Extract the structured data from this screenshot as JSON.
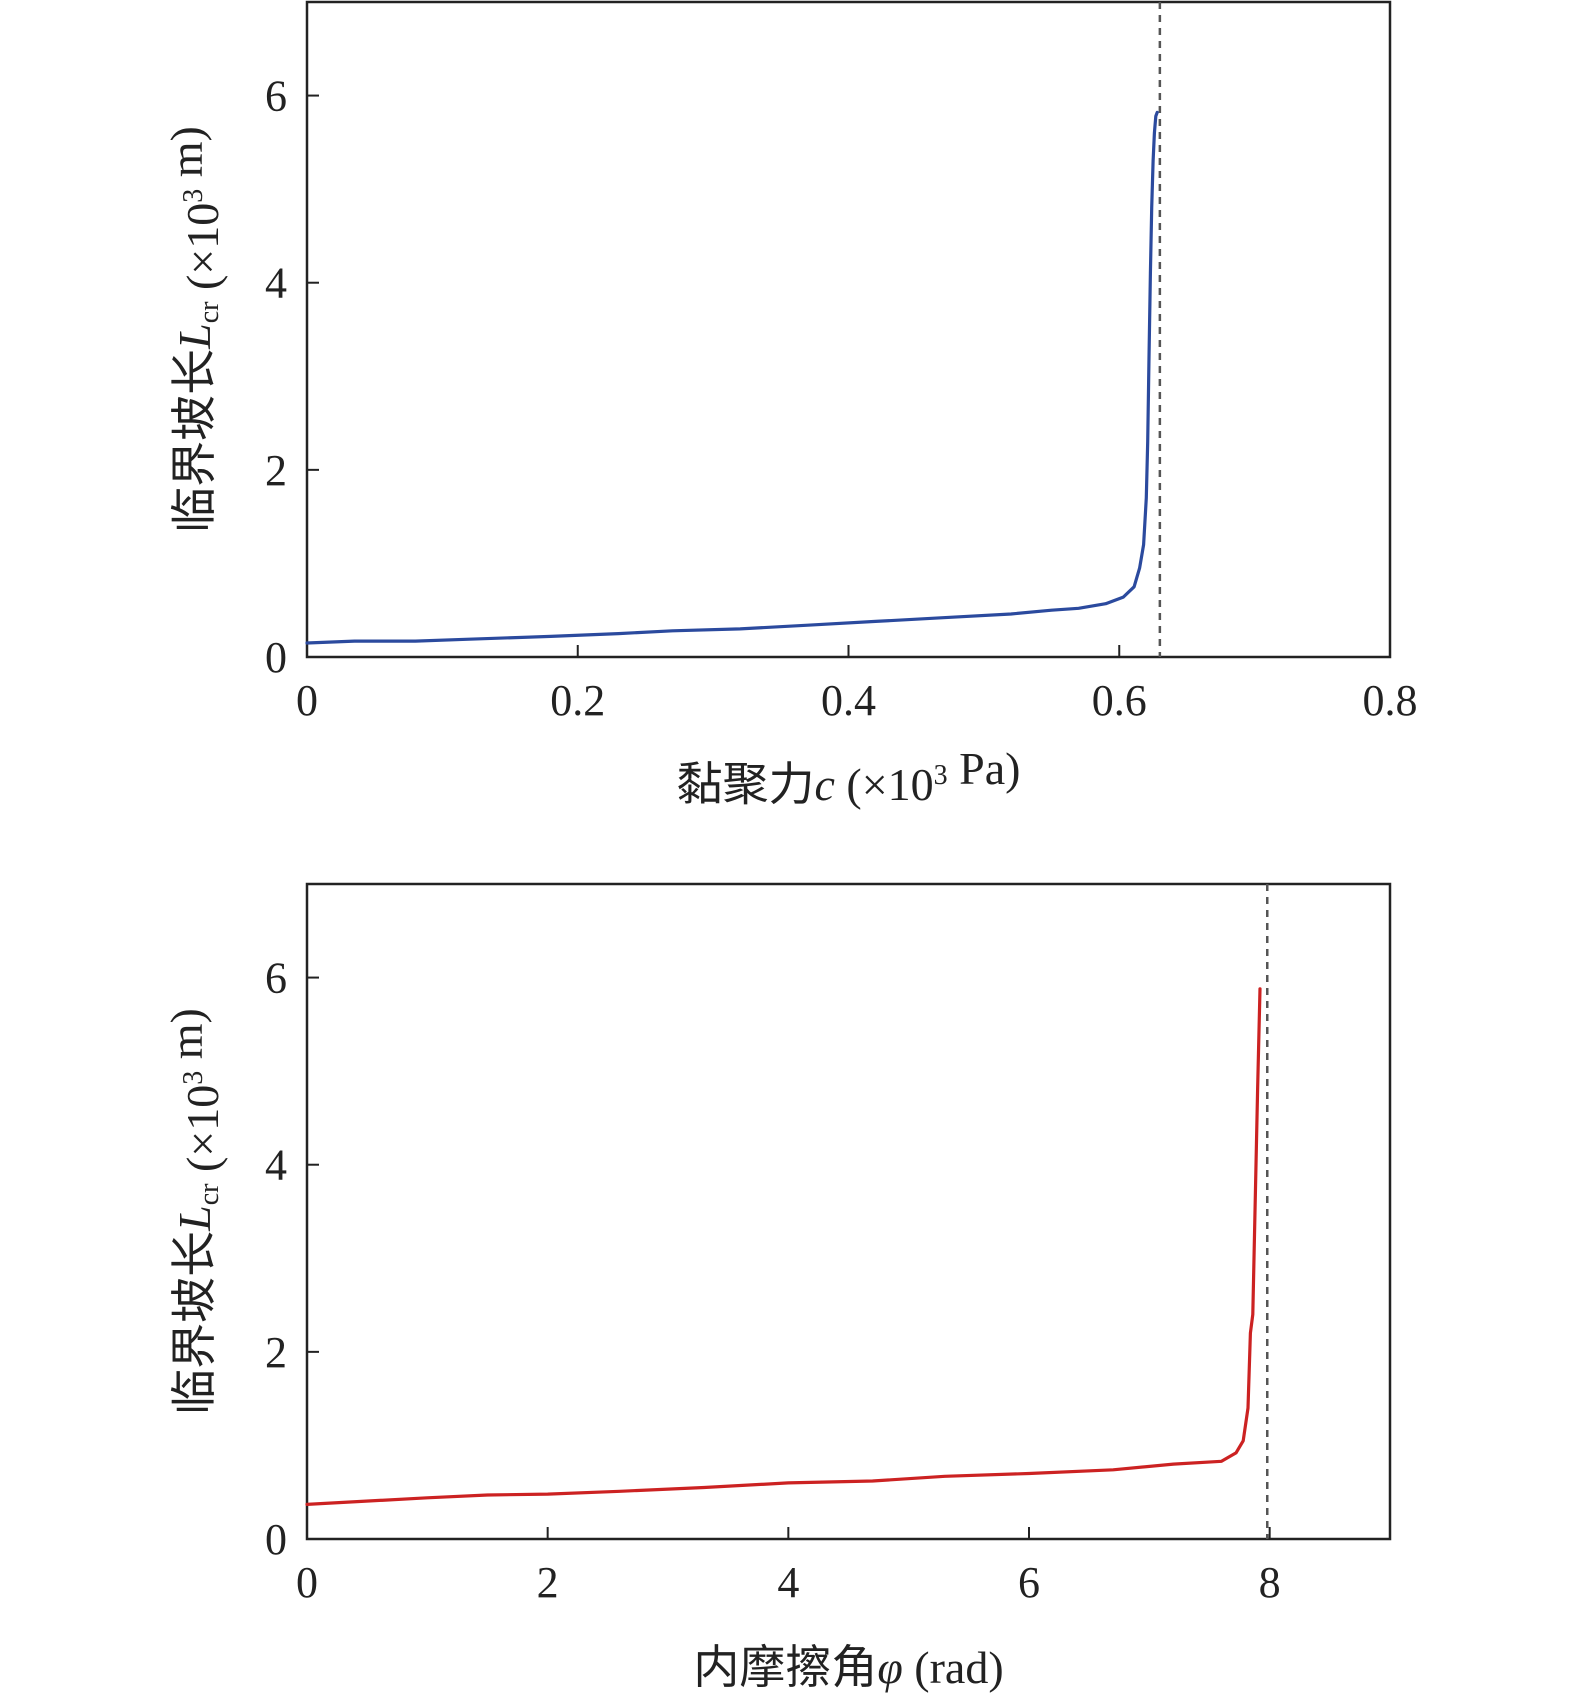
{
  "chart_data": [
    {
      "type": "line",
      "xlabel": "黏聚力c (×10³ Pa)",
      "ylabel": "临界坡长L_cr (×10³ m)",
      "xlim": [
        0,
        0.8
      ],
      "ylim": [
        0,
        7
      ],
      "xticks": [
        "0",
        "0.2",
        "0.4",
        "0.6",
        "0.8"
      ],
      "xtick_values": [
        0,
        0.2,
        0.4,
        0.6,
        0.8
      ],
      "yticks": [
        "0",
        "2",
        "4",
        "6"
      ],
      "ytick_values": [
        0,
        2,
        4,
        6
      ],
      "reference_line_x": 0.63,
      "color": "#2b4a9e",
      "series": [
        {
          "x": [
            0,
            0.035,
            0.08,
            0.12,
            0.18,
            0.23,
            0.27,
            0.32,
            0.37,
            0.42,
            0.47,
            0.52,
            0.55,
            0.57,
            0.59,
            0.603,
            0.611,
            0.615,
            0.618,
            0.62,
            0.621,
            0.622,
            0.623,
            0.624,
            0.625,
            0.626,
            0.627,
            0.628
          ],
          "y": [
            0.15,
            0.17,
            0.17,
            0.19,
            0.22,
            0.25,
            0.28,
            0.3,
            0.34,
            0.38,
            0.42,
            0.46,
            0.5,
            0.52,
            0.57,
            0.64,
            0.75,
            0.95,
            1.2,
            1.7,
            2.3,
            3.2,
            4.1,
            4.8,
            5.3,
            5.6,
            5.78,
            5.82
          ]
        }
      ]
    },
    {
      "type": "line",
      "xlabel": "内摩擦角φ (rad)",
      "ylabel": "临界坡长L_cr (×10³ m)",
      "xlim": [
        0,
        9
      ],
      "ylim": [
        0,
        7
      ],
      "xticks": [
        "0",
        "2",
        "4",
        "6",
        "8"
      ],
      "xtick_values": [
        0,
        2,
        4,
        6,
        8
      ],
      "yticks": [
        "0",
        "2",
        "4",
        "6"
      ],
      "ytick_values": [
        0,
        2,
        4,
        6
      ],
      "reference_line_x": 7.98,
      "color": "#cc2222",
      "series": [
        {
          "x": [
            0,
            1,
            1.5,
            2,
            2.6,
            3.3,
            4,
            4.7,
            5.3,
            6,
            6.7,
            7.2,
            7.6,
            7.72,
            7.78,
            7.82,
            7.84,
            7.86,
            7.88,
            7.9,
            7.92
          ],
          "y": [
            0.37,
            0.44,
            0.47,
            0.48,
            0.51,
            0.55,
            0.6,
            0.62,
            0.67,
            0.7,
            0.74,
            0.8,
            0.83,
            0.92,
            1.05,
            1.4,
            2.2,
            2.4,
            3.6,
            4.8,
            5.88
          ]
        }
      ]
    }
  ]
}
